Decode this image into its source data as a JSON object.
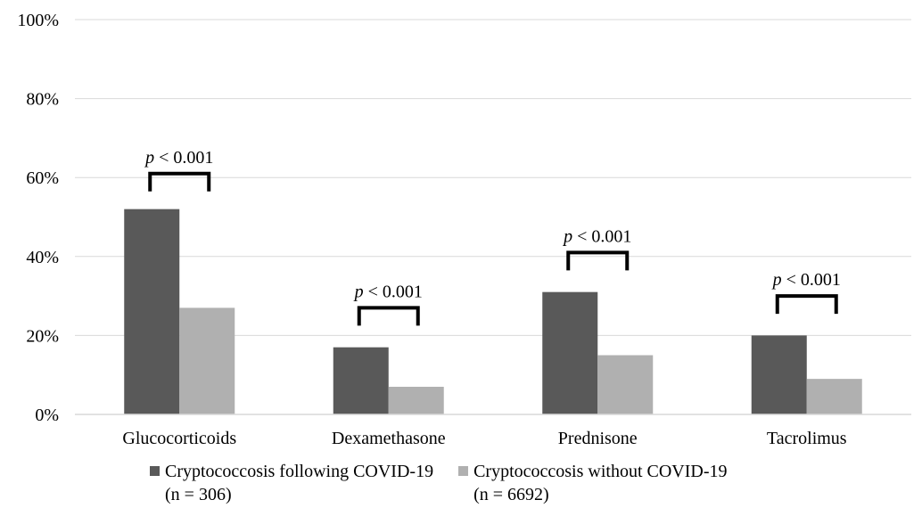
{
  "chart_data": {
    "type": "bar",
    "categories": [
      "Glucocorticoids",
      "Dexamethasone",
      "Prednisone",
      "Tacrolimus"
    ],
    "series": [
      {
        "name": "Cryptococcosis following COVID-19",
        "name_detail": "(n = 306)",
        "values": [
          52,
          17,
          31,
          20
        ],
        "color": "#595959"
      },
      {
        "name": "Cryptococcosis without COVID-19",
        "name_detail": "(n = 6692)",
        "values": [
          27,
          7,
          15,
          9
        ],
        "color": "#b0b0b0"
      }
    ],
    "ylim": [
      0,
      100
    ],
    "yticks": [
      0,
      20,
      40,
      60,
      80,
      100
    ],
    "ytick_format": "percent",
    "grid": true,
    "legend_position": "bottom",
    "annotations": [
      {
        "category": "Glucocorticoids",
        "label_italic": "p",
        "label_rest": " < 0.001",
        "y": 61
      },
      {
        "category": "Dexamethasone",
        "label_italic": "p",
        "label_rest": " < 0.001",
        "y": 27
      },
      {
        "category": "Prednisone",
        "label_italic": "p",
        "label_rest": " < 0.001",
        "y": 41
      },
      {
        "category": "Tacrolimus",
        "label_italic": "p",
        "label_rest": " < 0.001",
        "y": 30
      }
    ]
  }
}
